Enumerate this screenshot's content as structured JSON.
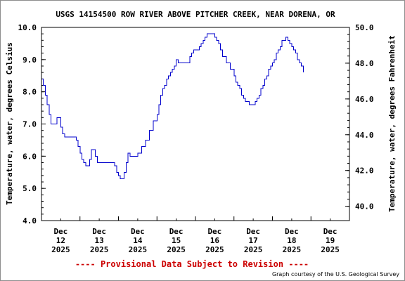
{
  "chart_data": {
    "type": "line",
    "title": "USGS 14154500 ROW RIVER ABOVE PITCHER CREEK, NEAR DORENA, OR",
    "ylabel": "Temperature, water, degrees Celsius",
    "ylabel_right": "Temperature, water, degrees Fahrenheit",
    "ylim": [
      4.0,
      10.0
    ],
    "yticks": [
      "4.0",
      "5.0",
      "6.0",
      "7.0",
      "8.0",
      "9.0",
      "10.0"
    ],
    "ylim_right": [
      39.2,
      50.0
    ],
    "yticks_right": [
      "40.0",
      "42.0",
      "44.0",
      "46.0",
      "48.0",
      "50.0"
    ],
    "xlim_days": [
      0,
      8
    ],
    "x_ticks": [
      {
        "day": 0.5,
        "label": [
          "Dec",
          "12",
          "2025"
        ]
      },
      {
        "day": 1.5,
        "label": [
          "Dec",
          "13",
          "2025"
        ]
      },
      {
        "day": 2.5,
        "label": [
          "Dec",
          "14",
          "2025"
        ]
      },
      {
        "day": 3.5,
        "label": [
          "Dec",
          "15",
          "2025"
        ]
      },
      {
        "day": 4.5,
        "label": [
          "Dec",
          "16",
          "2025"
        ]
      },
      {
        "day": 5.5,
        "label": [
          "Dec",
          "17",
          "2025"
        ]
      },
      {
        "day": 6.5,
        "label": [
          "Dec",
          "18",
          "2025"
        ]
      },
      {
        "day": 7.5,
        "label": [
          "Dec",
          "19",
          "2025"
        ]
      }
    ],
    "series": [
      {
        "color": "#0000cc",
        "points": [
          [
            0.0,
            8.4
          ],
          [
            0.05,
            8.2
          ],
          [
            0.1,
            7.9
          ],
          [
            0.15,
            7.6
          ],
          [
            0.2,
            7.3
          ],
          [
            0.25,
            7.0
          ],
          [
            0.35,
            7.0
          ],
          [
            0.4,
            7.2
          ],
          [
            0.45,
            7.2
          ],
          [
            0.5,
            6.9
          ],
          [
            0.55,
            6.7
          ],
          [
            0.6,
            6.6
          ],
          [
            0.8,
            6.6
          ],
          [
            0.9,
            6.5
          ],
          [
            0.95,
            6.3
          ],
          [
            1.0,
            6.1
          ],
          [
            1.05,
            5.9
          ],
          [
            1.1,
            5.8
          ],
          [
            1.15,
            5.7
          ],
          [
            1.2,
            5.7
          ],
          [
            1.25,
            5.9
          ],
          [
            1.3,
            6.2
          ],
          [
            1.35,
            6.2
          ],
          [
            1.4,
            6.0
          ],
          [
            1.45,
            5.8
          ],
          [
            1.65,
            5.8
          ],
          [
            1.8,
            5.8
          ],
          [
            1.9,
            5.7
          ],
          [
            1.95,
            5.5
          ],
          [
            2.0,
            5.4
          ],
          [
            2.05,
            5.3
          ],
          [
            2.1,
            5.3
          ],
          [
            2.15,
            5.5
          ],
          [
            2.2,
            5.8
          ],
          [
            2.25,
            6.1
          ],
          [
            2.3,
            6.0
          ],
          [
            2.35,
            6.0
          ],
          [
            2.45,
            6.0
          ],
          [
            2.5,
            6.1
          ],
          [
            2.6,
            6.3
          ],
          [
            2.7,
            6.5
          ],
          [
            2.8,
            6.8
          ],
          [
            2.9,
            7.1
          ],
          [
            3.0,
            7.3
          ],
          [
            3.05,
            7.6
          ],
          [
            3.1,
            7.9
          ],
          [
            3.15,
            8.1
          ],
          [
            3.2,
            8.2
          ],
          [
            3.25,
            8.4
          ],
          [
            3.3,
            8.5
          ],
          [
            3.35,
            8.6
          ],
          [
            3.4,
            8.7
          ],
          [
            3.45,
            8.8
          ],
          [
            3.5,
            9.0
          ],
          [
            3.55,
            8.9
          ],
          [
            3.8,
            8.9
          ],
          [
            3.85,
            9.1
          ],
          [
            3.9,
            9.2
          ],
          [
            3.95,
            9.3
          ],
          [
            4.05,
            9.3
          ],
          [
            4.1,
            9.4
          ],
          [
            4.15,
            9.5
          ],
          [
            4.2,
            9.6
          ],
          [
            4.25,
            9.7
          ],
          [
            4.3,
            9.8
          ],
          [
            4.45,
            9.8
          ],
          [
            4.5,
            9.7
          ],
          [
            4.55,
            9.6
          ],
          [
            4.6,
            9.5
          ],
          [
            4.65,
            9.3
          ],
          [
            4.7,
            9.1
          ],
          [
            4.8,
            8.9
          ],
          [
            4.9,
            8.7
          ],
          [
            5.0,
            8.5
          ],
          [
            5.05,
            8.3
          ],
          [
            5.1,
            8.2
          ],
          [
            5.15,
            8.1
          ],
          [
            5.2,
            7.9
          ],
          [
            5.25,
            7.8
          ],
          [
            5.3,
            7.7
          ],
          [
            5.35,
            7.7
          ],
          [
            5.4,
            7.6
          ],
          [
            5.5,
            7.6
          ],
          [
            5.55,
            7.7
          ],
          [
            5.6,
            7.8
          ],
          [
            5.65,
            7.9
          ],
          [
            5.7,
            8.1
          ],
          [
            5.75,
            8.2
          ],
          [
            5.8,
            8.4
          ],
          [
            5.85,
            8.5
          ],
          [
            5.9,
            8.7
          ],
          [
            5.95,
            8.8
          ],
          [
            6.0,
            8.9
          ],
          [
            6.05,
            9.0
          ],
          [
            6.1,
            9.2
          ],
          [
            6.15,
            9.3
          ],
          [
            6.2,
            9.4
          ],
          [
            6.25,
            9.6
          ],
          [
            6.3,
            9.6
          ],
          [
            6.35,
            9.7
          ],
          [
            6.4,
            9.6
          ],
          [
            6.45,
            9.5
          ],
          [
            6.5,
            9.4
          ],
          [
            6.55,
            9.3
          ],
          [
            6.6,
            9.2
          ],
          [
            6.65,
            9.0
          ],
          [
            6.7,
            8.9
          ],
          [
            6.75,
            8.8
          ],
          [
            6.8,
            8.6
          ]
        ]
      }
    ]
  },
  "footer": {
    "provisional": "---- Provisional Data Subject to Revision ----",
    "credit": "Graph courtesy of the U.S. Geological Survey"
  }
}
